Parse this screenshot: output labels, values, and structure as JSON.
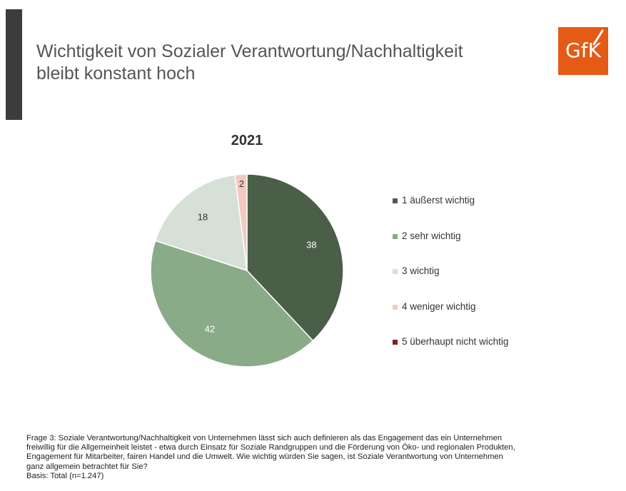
{
  "header": {
    "title_line1": "Wichtigkeit von Sozialer Verantwortung/Nachhaltigkeit",
    "title_line2": "bleibt konstant hoch",
    "logo_text": "GfK",
    "logo_color": "#e55a15",
    "accent_bar_color": "#3c3c3c"
  },
  "chart_data": {
    "type": "pie",
    "title": "2021",
    "categories": [
      "1 äußerst wichtig",
      "2 sehr wichtig",
      "3 wichtig",
      "4 weniger wichtig",
      "5 überhaupt nicht wichtig"
    ],
    "values": [
      38,
      42,
      18,
      2,
      0
    ],
    "data_labels": [
      "38",
      "42",
      "18",
      "2",
      ""
    ],
    "colors": [
      "#4a5e48",
      "#8aab87",
      "#d6e0d6",
      "#f3c9c2",
      "#8b1e14"
    ],
    "label_colors": [
      "#ffffff",
      "#ffffff",
      "#333333",
      "#333333",
      "#333333"
    ],
    "start_angle_deg": 0,
    "direction": "clockwise",
    "legend_position": "right"
  },
  "footer": {
    "question_line1": "Frage 3: Soziale Verantwortung/Nachhaltigkeit von Unternehmen lässt sich auch definieren als das Engagement das ein Unternehmen",
    "question_line2": "freiwillig für die Allgemeinheit leistet - etwa durch Einsatz für Soziale Randgruppen und die Förderung von Öko- und regionalen Produkten,",
    "question_line3": "Engagement für Mitarbeiter, fairen Handel und die Umwelt. Wie wichtig würden Sie sagen, ist Soziale Verantwortung von Unternehmen",
    "question_line4": "ganz allgemein betrachtet für Sie?",
    "basis": "Basis: Total (n=1.247)"
  }
}
